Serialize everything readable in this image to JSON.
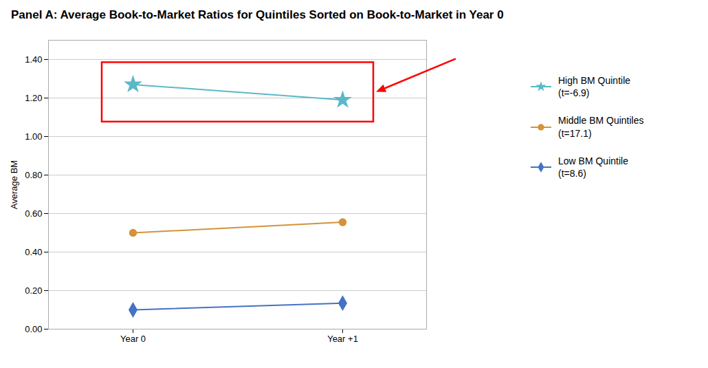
{
  "chart_data": {
    "type": "line",
    "title": "Panel A: Average Book-to-Market Ratios for Quintiles Sorted on Book-to-Market in Year 0",
    "ylabel": "Average BM",
    "categories": [
      "Year 0",
      "Year +1"
    ],
    "series": [
      {
        "name": "High BM Quintile\n(t=-6.9)",
        "color": "#5BB8C8",
        "marker": "star",
        "values": [
          1.27,
          1.19
        ]
      },
      {
        "name": "Middle BM Quintiles\n(t=17.1)",
        "color": "#D4923A",
        "marker": "circle",
        "values": [
          0.5,
          0.555
        ]
      },
      {
        "name": "Low BM Quintile\n(t=8.6)",
        "color": "#4472C4",
        "marker": "diamond",
        "values": [
          0.1,
          0.135
        ]
      }
    ],
    "ylim": [
      0,
      1.5
    ],
    "yticks": [
      {
        "value": 0,
        "label": "0.00"
      },
      {
        "value": 0.2,
        "label": "0.20"
      },
      {
        "value": 0.4,
        "label": "0.40"
      },
      {
        "value": 0.6,
        "label": "0.60"
      },
      {
        "value": 0.8,
        "label": "0.80"
      },
      {
        "value": 1,
        "label": "1.00"
      },
      {
        "value": 1.2,
        "label": "1.20"
      },
      {
        "value": 1.4,
        "label": "1.40"
      }
    ],
    "grid": true,
    "legend": "right"
  }
}
